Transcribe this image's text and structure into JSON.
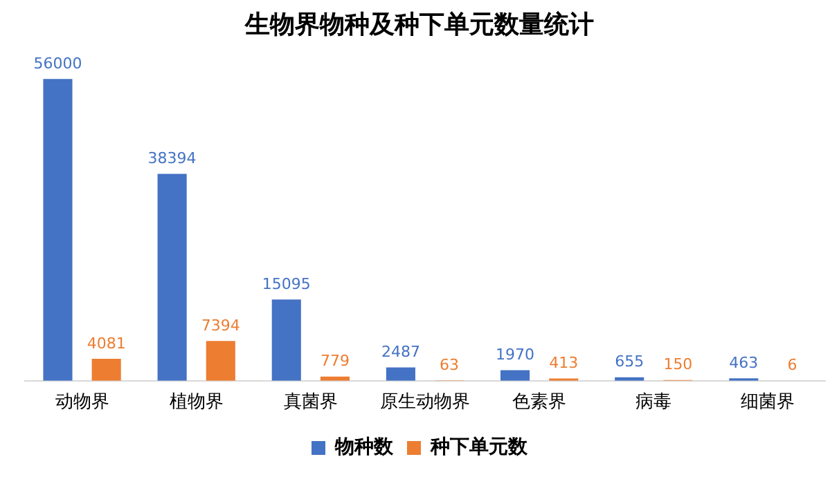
{
  "chart_data": {
    "type": "bar",
    "title": "生物界物种及种下单元数量统计",
    "categories": [
      "动物界",
      "植物界",
      "真菌界",
      "原生动物界",
      "色素界",
      "病毒",
      "细菌界"
    ],
    "series": [
      {
        "name": "物种数",
        "color": "#4472c4",
        "values": [
          56000,
          38394,
          15095,
          2487,
          1970,
          655,
          463
        ]
      },
      {
        "name": "种下单元数",
        "color": "#ed7d31",
        "values": [
          4081,
          7394,
          779,
          63,
          413,
          150,
          6
        ]
      }
    ],
    "data_labels": true,
    "legend": "bottom",
    "grid": false
  }
}
